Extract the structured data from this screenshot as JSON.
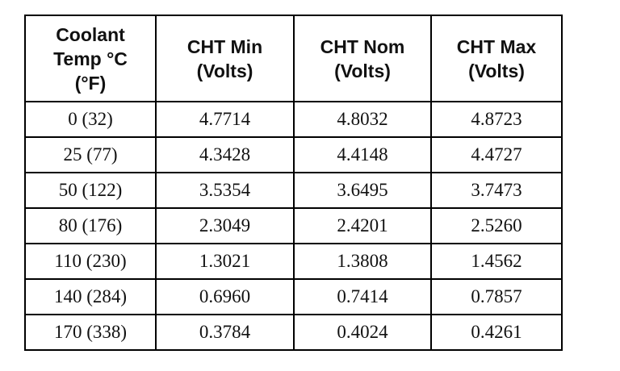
{
  "table": {
    "header": [
      [
        "Coolant",
        "Temp °C",
        "(°F)"
      ],
      [
        "CHT Min",
        "(Volts)"
      ],
      [
        "CHT Nom",
        "(Volts)"
      ],
      [
        "CHT Max",
        "(Volts)"
      ]
    ],
    "rows": [
      [
        "0 (32)",
        "4.7714",
        "4.8032",
        "4.8723"
      ],
      [
        "25 (77)",
        "4.3428",
        "4.4148",
        "4.4727"
      ],
      [
        "50 (122)",
        "3.5354",
        "3.6495",
        "3.7473"
      ],
      [
        "80 (176)",
        "2.3049",
        "2.4201",
        "2.5260"
      ],
      [
        "110 (230)",
        "1.3021",
        "1.3808",
        "1.4562"
      ],
      [
        "140 (284)",
        "0.6960",
        "0.7414",
        "0.7857"
      ],
      [
        "170 (338)",
        "0.3784",
        "0.4024",
        "0.4261"
      ]
    ]
  }
}
